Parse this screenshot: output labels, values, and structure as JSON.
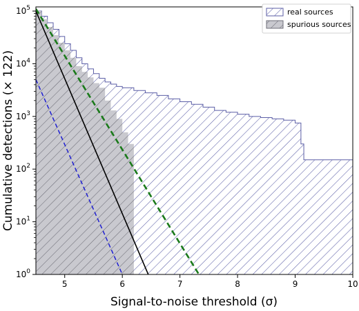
{
  "chart_data": {
    "type": "area",
    "xlabel": "Signal-to-noise threshold (σ)",
    "ylabel": "Cumulative detections (× 122)",
    "xlim": [
      4.5,
      10
    ],
    "ylim": [
      1,
      120000
    ],
    "yscale": "log",
    "grid": false,
    "legend_position": "top-right",
    "x_ticks": [
      5,
      6,
      7,
      8,
      9,
      10
    ],
    "y_ticks": [
      {
        "value": 1,
        "base": "10",
        "exp": "0"
      },
      {
        "value": 10,
        "base": "10",
        "exp": "1"
      },
      {
        "value": 100,
        "base": "10",
        "exp": "2"
      },
      {
        "value": 1000,
        "base": "10",
        "exp": "3"
      },
      {
        "value": 10000,
        "base": "10",
        "exp": "4"
      },
      {
        "value": 100000,
        "base": "10",
        "exp": "5"
      }
    ],
    "series": [
      {
        "name": "real sources",
        "style": "step-fill",
        "color": "#5b5ea6",
        "hatch": "diagonal",
        "x": [
          4.5,
          4.6,
          4.7,
          4.8,
          4.9,
          5.0,
          5.1,
          5.2,
          5.3,
          5.4,
          5.5,
          5.6,
          5.7,
          5.8,
          5.9,
          6.0,
          6.2,
          6.4,
          6.6,
          6.8,
          7.0,
          7.2,
          7.4,
          7.6,
          7.8,
          8.0,
          8.2,
          8.4,
          8.6,
          8.8,
          9.0,
          9.1,
          9.15,
          9.4,
          10.0
        ],
        "y": [
          100000,
          80000,
          60000,
          45000,
          33000,
          24000,
          18000,
          13000,
          10000,
          8000,
          6500,
          5300,
          4500,
          4100,
          3700,
          3500,
          3100,
          2800,
          2500,
          2150,
          1900,
          1700,
          1500,
          1300,
          1200,
          1100,
          1000,
          950,
          900,
          850,
          750,
          300,
          150,
          150,
          150
        ]
      },
      {
        "name": "spurious sources",
        "style": "step-fill",
        "color": "#8c8c9a",
        "hatch": "diagonal",
        "x": [
          4.5,
          4.6,
          4.7,
          4.8,
          4.9,
          5.0,
          5.1,
          5.2,
          5.3,
          5.4,
          5.5,
          5.6,
          5.7,
          5.8,
          5.9,
          6.0,
          6.1,
          6.2
        ],
        "y": [
          100000,
          70000,
          50000,
          35000,
          25000,
          18000,
          13000,
          9000,
          7000,
          5500,
          4300,
          3500,
          2000,
          1300,
          900,
          500,
          300,
          300
        ]
      },
      {
        "color": "#1f1fd1",
        "style": "dashed",
        "x": [
          4.5,
          6.0
        ],
        "y": [
          5000,
          1
        ]
      },
      {
        "color": "#000000",
        "style": "solid",
        "x": [
          4.5,
          6.45
        ],
        "y": [
          100000,
          1
        ]
      },
      {
        "color": "#1a7a1a",
        "style": "dashed-thick",
        "x": [
          4.5,
          7.33
        ],
        "y": [
          110000,
          1
        ]
      }
    ]
  }
}
